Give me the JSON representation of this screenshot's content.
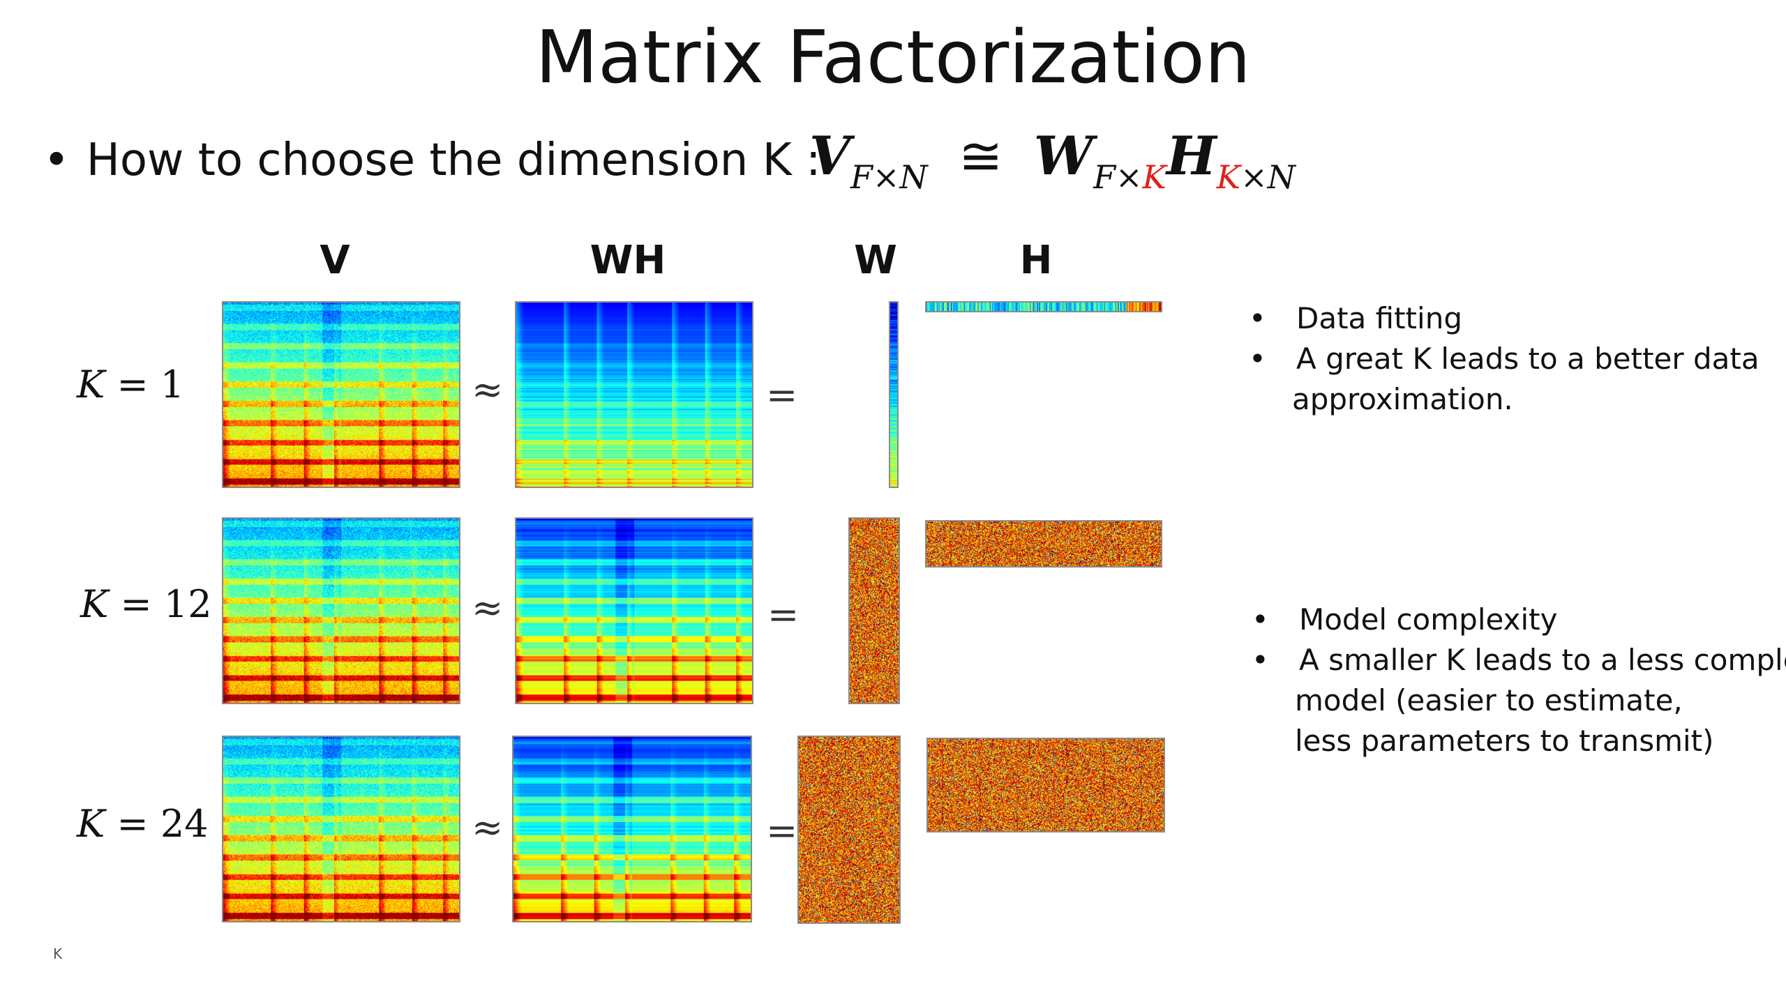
{
  "slide": {
    "title": "Matrix Factorization",
    "bullet": "How to choose the dimension K :",
    "formula": {
      "V": "V",
      "V_sub": "F×N",
      "approx": "≅",
      "W": "W",
      "W_sub_a": "F×",
      "W_sub_k": "K",
      "H": "H",
      "H_sub_k": "K",
      "H_sub_b": "×N"
    },
    "column_headers": [
      "V",
      "WH",
      "W",
      "H"
    ],
    "rows": [
      {
        "k_var": "K",
        "k_eq": "= 1",
        "approx": "≈",
        "equals": "="
      },
      {
        "k_var": "K",
        "k_eq": "= 12",
        "approx": "≈",
        "equals": "="
      },
      {
        "k_var": "K",
        "k_eq": "= 24",
        "approx": "≈",
        "equals": "="
      }
    ],
    "notes_top": [
      "Data fitting",
      "A great K leads to a better data",
      "approximation."
    ],
    "notes_bottom": [
      "Model complexity",
      "A smaller K leads to a less complex",
      "model (easier to estimate,",
      "less parameters to transmit)"
    ],
    "bullet_glyph": "•",
    "footer_mark": "K"
  },
  "colors": {
    "accent_red": "#e0201b",
    "text": "#111111"
  },
  "colormap": "jet"
}
